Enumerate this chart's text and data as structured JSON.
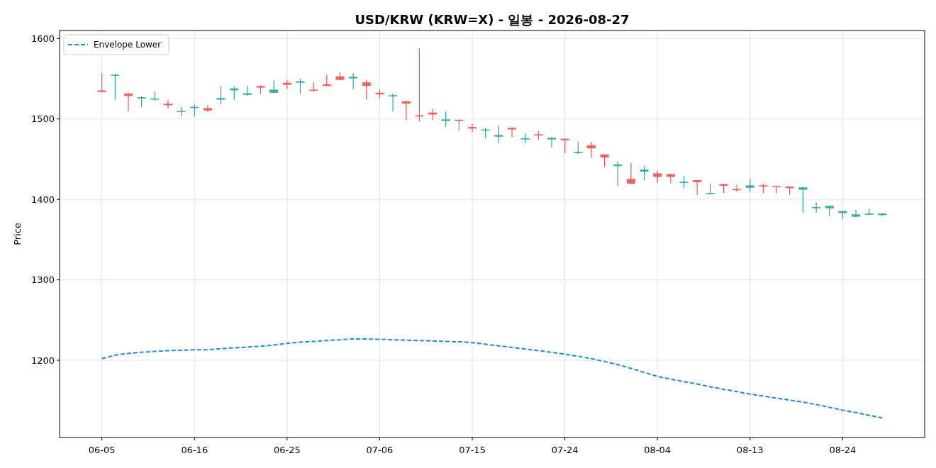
{
  "chart_data": {
    "type": "candlestick",
    "title": "USD/KRW (KRW=X) - 일봉 - 2026-08-27",
    "ylabel": "Price",
    "categories": [
      "06-05",
      null,
      null,
      null,
      null,
      null,
      null,
      "06-16",
      null,
      null,
      null,
      null,
      null,
      null,
      "06-25",
      null,
      null,
      null,
      null,
      null,
      null,
      "07-06",
      null,
      null,
      null,
      null,
      null,
      null,
      "07-15",
      null,
      null,
      null,
      null,
      null,
      null,
      "07-24",
      null,
      null,
      null,
      null,
      null,
      null,
      "08-04",
      null,
      null,
      null,
      null,
      null,
      null,
      "08-13",
      null,
      null,
      null,
      null,
      null,
      null,
      "08-24",
      null,
      null,
      null
    ],
    "ohlc": [
      [
        1535.5,
        1557,
        1533,
        1533.5
      ],
      [
        1554,
        1556,
        1524,
        1555
      ],
      [
        1531.5,
        1533,
        1509.5,
        1528.5
      ],
      [
        1525.5,
        1528,
        1515,
        1527
      ],
      [
        1524,
        1534,
        1523,
        1525.5
      ],
      [
        1519,
        1524,
        1513,
        1517
      ],
      [
        1509,
        1515,
        1503,
        1510
      ],
      [
        1513.5,
        1518,
        1503,
        1515
      ],
      [
        1513.5,
        1517,
        1508.5,
        1510.5
      ],
      [
        1524,
        1541,
        1518,
        1526
      ],
      [
        1535.5,
        1540,
        1524,
        1538
      ],
      [
        1530,
        1541,
        1528.5,
        1532
      ],
      [
        1541,
        1542,
        1531,
        1539
      ],
      [
        1532.5,
        1548,
        1532.5,
        1536.5
      ],
      [
        1545,
        1548.5,
        1537,
        1542.5
      ],
      [
        1545,
        1550,
        1531,
        1547
      ],
      [
        1536.5,
        1545.5,
        1534,
        1535
      ],
      [
        1543,
        1555,
        1541,
        1541
      ],
      [
        1553,
        1558.5,
        1548,
        1548.5
      ],
      [
        1550.5,
        1557,
        1537,
        1552.5
      ],
      [
        1545.5,
        1548.5,
        1524,
        1541
      ],
      [
        1532.5,
        1536.5,
        1525.5,
        1530.5
      ],
      [
        1528,
        1531.5,
        1509.5,
        1529.5
      ],
      [
        1522,
        1522,
        1498.5,
        1519
      ],
      [
        1504.5,
        1588,
        1497,
        1503
      ],
      [
        1508,
        1512.5,
        1499,
        1505.5
      ],
      [
        1497.5,
        1509,
        1490.5,
        1499.5
      ],
      [
        1499,
        1499.5,
        1485,
        1497.5
      ],
      [
        1490,
        1494,
        1483.5,
        1488
      ],
      [
        1485.5,
        1489,
        1476,
        1487
      ],
      [
        1478,
        1492,
        1470,
        1480
      ],
      [
        1489,
        1489,
        1477,
        1487
      ],
      [
        1474.5,
        1482,
        1470,
        1476
      ],
      [
        1481,
        1485,
        1474,
        1479.5
      ],
      [
        1474.5,
        1477.5,
        1464.5,
        1476.5
      ],
      [
        1475.5,
        1475.5,
        1457.5,
        1473.5
      ],
      [
        1457.5,
        1472,
        1456.5,
        1459
      ],
      [
        1467.5,
        1471.5,
        1451.5,
        1463.5
      ],
      [
        1456,
        1456,
        1440.5,
        1452
      ],
      [
        1441.5,
        1447.5,
        1417,
        1443.5
      ],
      [
        1425.5,
        1445,
        1419.5,
        1419.5
      ],
      [
        1434.5,
        1441.5,
        1424,
        1437
      ],
      [
        1432.5,
        1436,
        1420.5,
        1428
      ],
      [
        1431.5,
        1431.5,
        1419.5,
        1428
      ],
      [
        1420.5,
        1429,
        1414,
        1422
      ],
      [
        1424,
        1424,
        1405.5,
        1421.5
      ],
      [
        1406.5,
        1419.5,
        1406.5,
        1408
      ],
      [
        1419,
        1419,
        1408,
        1417
      ],
      [
        1413,
        1418.5,
        1409.5,
        1411.5
      ],
      [
        1414.5,
        1425.5,
        1409.5,
        1417.5
      ],
      [
        1417.5,
        1419.5,
        1407.5,
        1416
      ],
      [
        1416.5,
        1416.5,
        1407.5,
        1415
      ],
      [
        1416,
        1416,
        1406,
        1414
      ],
      [
        1412,
        1415,
        1383.5,
        1415
      ],
      [
        1389,
        1396.5,
        1383.5,
        1390.5
      ],
      [
        1389,
        1392,
        1379,
        1392
      ],
      [
        1383,
        1385.5,
        1375.5,
        1385.5
      ],
      [
        1378.5,
        1387,
        1378,
        1381.5
      ],
      [
        1381,
        1388,
        1381,
        1382.5
      ],
      [
        1380.5,
        1382.5,
        1379,
        1382.5
      ]
    ],
    "colors": [
      "#ef5350",
      "#26a69a",
      "#ef5350",
      "#26a69a",
      "#26a69a",
      "#ef5350",
      "#26a69a",
      "#26a69a",
      "#ef5350",
      "#26a69a",
      "#26a69a",
      "#26a69a",
      "#ef5350",
      "#26a69a",
      "#ef5350",
      "#26a69a",
      "#ef5350",
      "#ef5350",
      "#ef5350",
      "#26a69a",
      "#ef5350",
      "#ef5350",
      "#26a69a",
      "#ef5350",
      "#ef5350",
      "#ef5350",
      "#26a69a",
      "#ef5350",
      "#ef5350",
      "#26a69a",
      "#26a69a",
      "#ef5350",
      "#26a69a",
      "#ef5350",
      "#26a69a",
      "#ef5350",
      "#26a69a",
      "#ef5350",
      "#ef5350",
      "#26a69a",
      "#ef5350",
      "#26a69a",
      "#ef5350",
      "#ef5350",
      "#26a69a",
      "#ef5350",
      "#26a69a",
      "#ef5350",
      "#ef5350",
      "#26a69a",
      "#ef5350",
      "#ef5350",
      "#ef5350",
      "#26a69a",
      "#26a69a",
      "#26a69a",
      "#26a69a",
      "#26a69a",
      "#26a69a",
      "#26a69a"
    ],
    "series": [
      {
        "type": "line",
        "name": "Envelope Lower",
        "color": "#1e88e5",
        "line_style": "dashed",
        "values": [
          1202,
          1206.5,
          1208.5,
          1210,
          1211,
          1212,
          1212.5,
          1213,
          1213,
          1214.5,
          1215.5,
          1216.5,
          1217.5,
          1219,
          1221,
          1222.5,
          1223.5,
          1224.5,
          1225.5,
          1226.5,
          1226.5,
          1226,
          1225.5,
          1225,
          1224.5,
          1224,
          1223.5,
          1223,
          1222,
          1220,
          1218,
          1216,
          1214,
          1212,
          1210,
          1207.5,
          1205,
          1202,
          1198.5,
          1194.5,
          1190,
          1185,
          1180,
          1176.5,
          1173.5,
          1170.5,
          1167,
          1164,
          1161,
          1158,
          1155.5,
          1153,
          1150.5,
          1148,
          1145,
          1141.5,
          1138,
          1135,
          1131.5,
          1128.5
        ]
      }
    ],
    "ylim": [
      1104,
      1610
    ],
    "yticks": [
      1200,
      1300,
      1400,
      1500,
      1600
    ],
    "grid": true,
    "legend": "top left"
  }
}
